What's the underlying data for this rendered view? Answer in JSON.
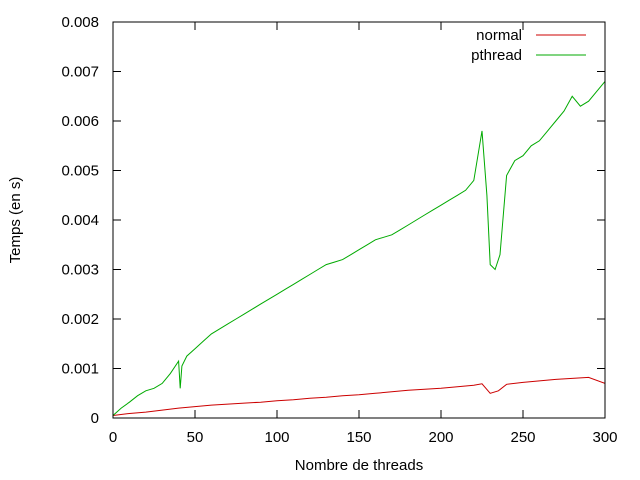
{
  "chart_data": {
    "type": "line",
    "xlabel": "Nombre de threads",
    "ylabel": "Temps (en s)",
    "xlim": [
      0,
      300
    ],
    "ylim": [
      0,
      0.008
    ],
    "x_ticks": [
      "0",
      "50",
      "100",
      "150",
      "200",
      "250",
      "300"
    ],
    "y_ticks": [
      "0",
      "0.001",
      "0.002",
      "0.003",
      "0.004",
      "0.005",
      "0.006",
      "0.007",
      "0.008"
    ],
    "grid": false,
    "legend_position": "top-right",
    "series": [
      {
        "name": "normal",
        "color": "#cc0000",
        "x": [
          0,
          10,
          20,
          30,
          40,
          50,
          60,
          70,
          80,
          90,
          100,
          110,
          120,
          130,
          140,
          150,
          160,
          170,
          180,
          190,
          200,
          210,
          220,
          225,
          230,
          235,
          240,
          250,
          260,
          270,
          280,
          290,
          300
        ],
        "y": [
          5e-05,
          9e-05,
          0.00012,
          0.00016,
          0.0002,
          0.00023,
          0.00026,
          0.00028,
          0.0003,
          0.00032,
          0.00035,
          0.00037,
          0.0004,
          0.00042,
          0.00045,
          0.00047,
          0.0005,
          0.00053,
          0.00056,
          0.00058,
          0.0006,
          0.00063,
          0.00066,
          0.00069,
          0.0005,
          0.00055,
          0.00068,
          0.00072,
          0.00075,
          0.00078,
          0.0008,
          0.00082,
          0.0007
        ]
      },
      {
        "name": "pthread",
        "color": "#00aa00",
        "x": [
          0,
          5,
          10,
          15,
          20,
          25,
          30,
          35,
          40,
          41,
          42,
          45,
          50,
          55,
          60,
          65,
          70,
          75,
          80,
          85,
          90,
          95,
          100,
          105,
          110,
          115,
          120,
          125,
          130,
          135,
          140,
          145,
          150,
          155,
          160,
          165,
          170,
          175,
          180,
          185,
          190,
          195,
          200,
          205,
          210,
          215,
          220,
          225,
          228,
          230,
          233,
          236,
          240,
          245,
          250,
          255,
          260,
          265,
          270,
          275,
          280,
          285,
          290,
          295,
          300
        ],
        "y": [
          5e-05,
          0.0002,
          0.00032,
          0.00045,
          0.00055,
          0.0006,
          0.0007,
          0.0009,
          0.00115,
          0.0006,
          0.00105,
          0.00125,
          0.0014,
          0.00155,
          0.0017,
          0.0018,
          0.0019,
          0.002,
          0.0021,
          0.0022,
          0.0023,
          0.0024,
          0.0025,
          0.0026,
          0.0027,
          0.0028,
          0.0029,
          0.003,
          0.0031,
          0.00315,
          0.0032,
          0.0033,
          0.0034,
          0.0035,
          0.0036,
          0.00365,
          0.0037,
          0.0038,
          0.0039,
          0.004,
          0.0041,
          0.0042,
          0.0043,
          0.0044,
          0.0045,
          0.0046,
          0.0048,
          0.0058,
          0.0045,
          0.0031,
          0.003,
          0.0033,
          0.0049,
          0.0052,
          0.0053,
          0.0055,
          0.0056,
          0.0058,
          0.006,
          0.0062,
          0.0065,
          0.0063,
          0.0064,
          0.0066,
          0.0068
        ]
      }
    ]
  }
}
